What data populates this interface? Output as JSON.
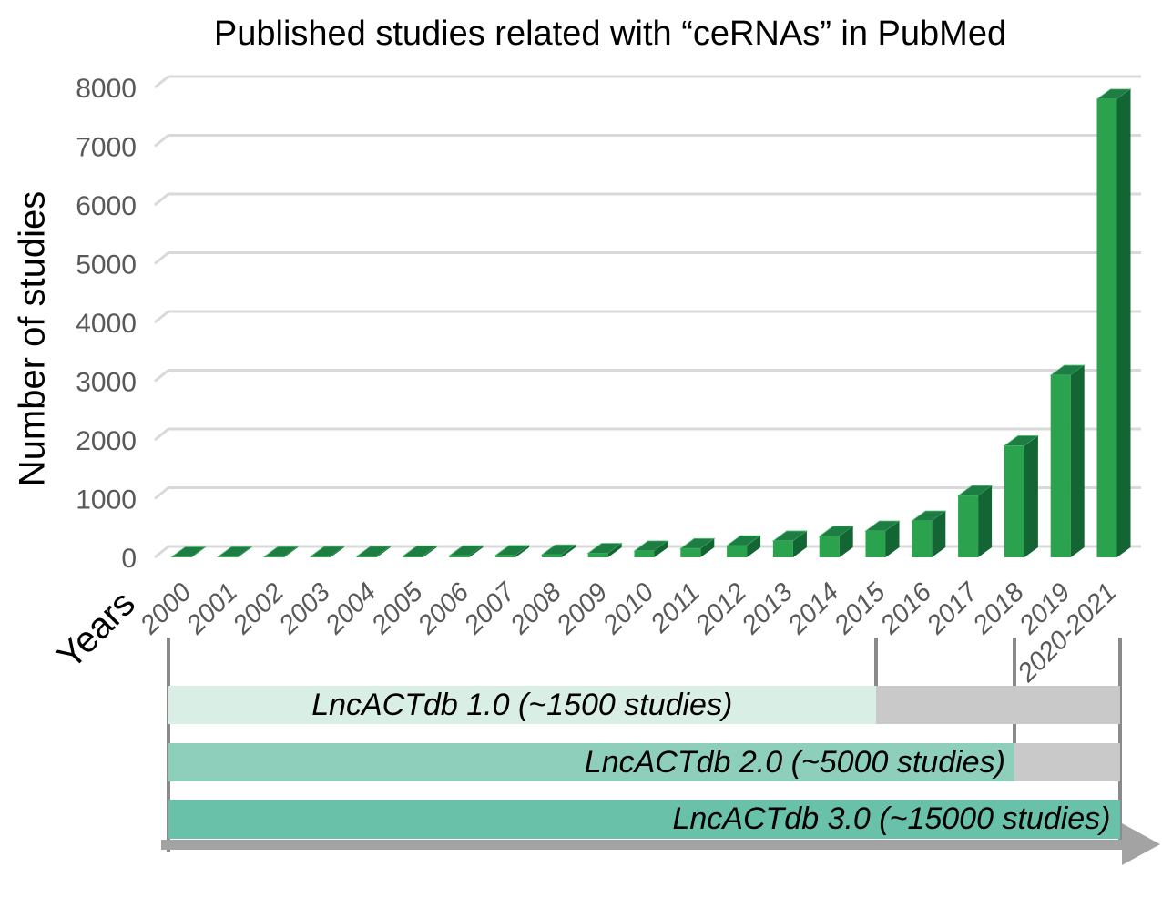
{
  "chart_data": {
    "type": "bar",
    "variant": "3d-bar",
    "title": "Published studies related with “ceRNAs” in PubMed",
    "xlabel": "Years",
    "ylabel": "Number of studies",
    "categories": [
      "2000",
      "2001",
      "2002",
      "2003",
      "2004",
      "2005",
      "2006",
      "2007",
      "2008",
      "2009",
      "2010",
      "2011",
      "2012",
      "2013",
      "2014",
      "2015",
      "2016",
      "2017",
      "2018",
      "2019",
      "2020-2021"
    ],
    "values": [
      8,
      10,
      12,
      15,
      18,
      22,
      28,
      35,
      45,
      70,
      110,
      150,
      200,
      280,
      360,
      450,
      620,
      1050,
      1900,
      3100,
      7800
    ],
    "ylim": [
      0,
      8000
    ],
    "ytick_step": 1000,
    "grid": "horizontal",
    "legend": "none",
    "colors": {
      "bar_front": "#2aa24e",
      "bar_top": "#1e7d42",
      "bar_side": "#146534",
      "gridline": "#d9d9d9",
      "tick_text": "#595959"
    }
  },
  "timeline": {
    "versions": [
      {
        "label": "LncACTdb 1.0 (~1500 studies)",
        "start_year": "2000",
        "end_year": "2015",
        "bar_color": "#d9eee4",
        "label_align": "center"
      },
      {
        "label": "LncACTdb 2.0 (~5000 studies)",
        "start_year": "2000",
        "end_year": "2018",
        "bar_color": "#8dcfba",
        "label_align": "right"
      },
      {
        "label": "LncACTdb 3.0 (~15000 studies)",
        "start_year": "2000",
        "end_year": "2020-2021",
        "bar_color": "#68c1a8",
        "label_align": "right"
      }
    ],
    "uncovered_color": "#c9c9c9",
    "guide_color": "#8a8a8a",
    "arrow_color": "#a3a3a3"
  }
}
